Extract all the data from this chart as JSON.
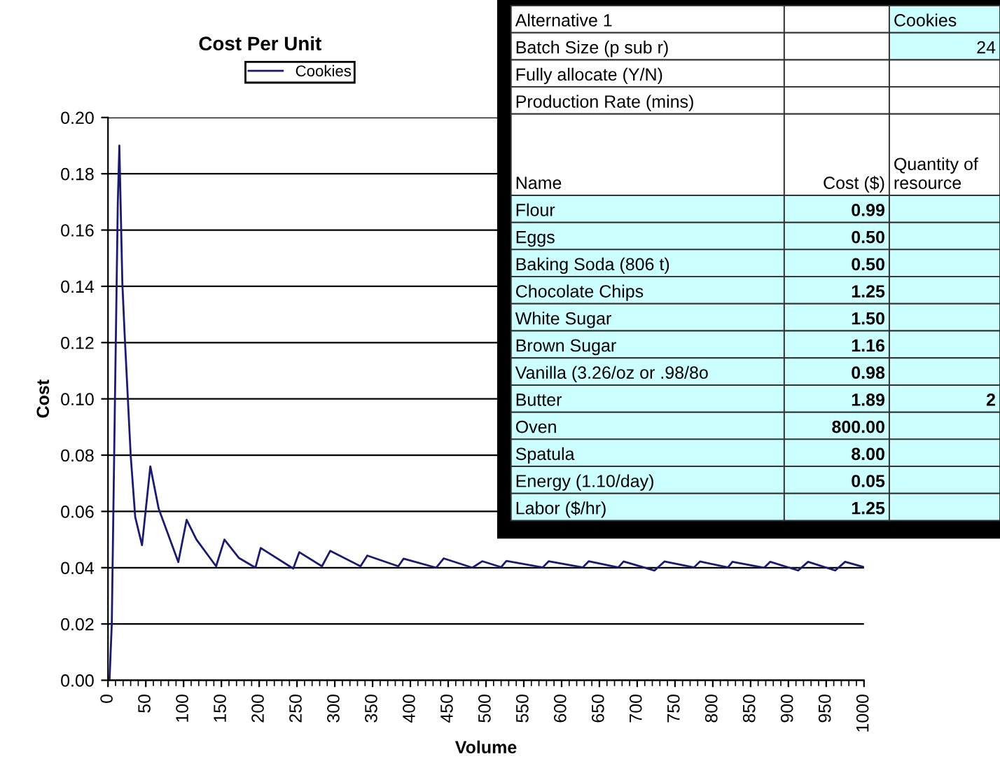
{
  "chart_data": [
    {
      "type": "line",
      "title": "Cost Per Unit",
      "xlabel": "Volume",
      "ylabel": "Cost",
      "legend": "top",
      "grid": "y",
      "marker": "none",
      "line_style": "solid",
      "xlim": [
        0,
        1000
      ],
      "xticks": [
        0,
        50,
        100,
        150,
        200,
        250,
        300,
        350,
        400,
        450,
        500,
        550,
        600,
        650,
        700,
        750,
        800,
        850,
        900,
        950,
        1000
      ],
      "ylim": [
        0,
        0.2
      ],
      "yticks": [
        {
          "value": 0,
          "label": "0.00"
        },
        {
          "value": 0.02,
          "label": "0.02"
        },
        {
          "value": 0.04,
          "label": "0.04"
        },
        {
          "value": 0.06,
          "label": "0.06"
        },
        {
          "value": 0.08,
          "label": "0.08"
        },
        {
          "value": 0.1,
          "label": "0.10"
        },
        {
          "value": 0.12,
          "label": "0.12"
        },
        {
          "value": 0.14,
          "label": "0.14"
        },
        {
          "value": 0.16,
          "label": "0.16"
        },
        {
          "value": 0.18,
          "label": "0.18"
        },
        {
          "value": 0.2,
          "label": "0.20"
        }
      ],
      "series": [
        {
          "name": "Cookies",
          "color": "#1a1a6e",
          "x": [
            2,
            5,
            9,
            11,
            13,
            15,
            19,
            22,
            30,
            36,
            45,
            56,
            67,
            93,
            104,
            117,
            143,
            154,
            173,
            195,
            202,
            245,
            253,
            283,
            294,
            334,
            343,
            384,
            391,
            434,
            444,
            482,
            495,
            520,
            527,
            575,
            583,
            628,
            636,
            675,
            682,
            723,
            736,
            775,
            783,
            820,
            826,
            868,
            876,
            913,
            926,
            962,
            975,
            1000
          ],
          "values": [
            0,
            0.02,
            0.096,
            0.133,
            0.17,
            0.19,
            0.141,
            0.123,
            0.08,
            0.058,
            0.048,
            0.076,
            0.061,
            0.042,
            0.057,
            0.05,
            0.0405,
            0.05,
            0.0435,
            0.04,
            0.047,
            0.0397,
            0.0455,
            0.0405,
            0.046,
            0.0405,
            0.0443,
            0.0405,
            0.0432,
            0.04,
            0.0433,
            0.04,
            0.0423,
            0.0402,
            0.0424,
            0.0401,
            0.0423,
            0.0401,
            0.0423,
            0.0401,
            0.0422,
            0.039,
            0.0422,
            0.0401,
            0.0422,
            0.0401,
            0.0421,
            0.04,
            0.0421,
            0.039,
            0.0421,
            0.039,
            0.0421,
            0.0402
          ]
        }
      ]
    },
    {
      "type": "other",
      "y_categories": [
        "Alternative 1",
        "Batch Size (p sub r)",
        "Fully allocate (Y/N)",
        "Production Rate (mins)",
        "Name",
        "Flour",
        "Eggs",
        "Baking Soda (806 t)",
        "Chocolate Chips",
        "White Sugar",
        "Brown Sugar",
        "Vanilla (3.26/oz or .98/8o",
        "Butter",
        "Oven",
        "Spatula",
        "Energy (1.10/day)",
        "Labor ($/hr)"
      ],
      "cell_labels": [
        [
          null,
          "Cookies"
        ],
        [
          null,
          "24"
        ],
        [
          null,
          null
        ],
        [
          null,
          null
        ],
        [
          "Cost ($)",
          "Quantity of\nresource"
        ],
        [
          "0.99",
          null
        ],
        [
          "0.50",
          null
        ],
        [
          "0.50",
          null
        ],
        [
          "1.25",
          null
        ],
        [
          "1.50",
          null
        ],
        [
          "1.16",
          null
        ],
        [
          "0.98",
          null
        ],
        [
          "1.89",
          "2"
        ],
        [
          "800.00",
          null
        ],
        [
          "8.00",
          null
        ],
        [
          "0.05",
          null
        ],
        [
          "1.25",
          null
        ]
      ]
    }
  ]
}
